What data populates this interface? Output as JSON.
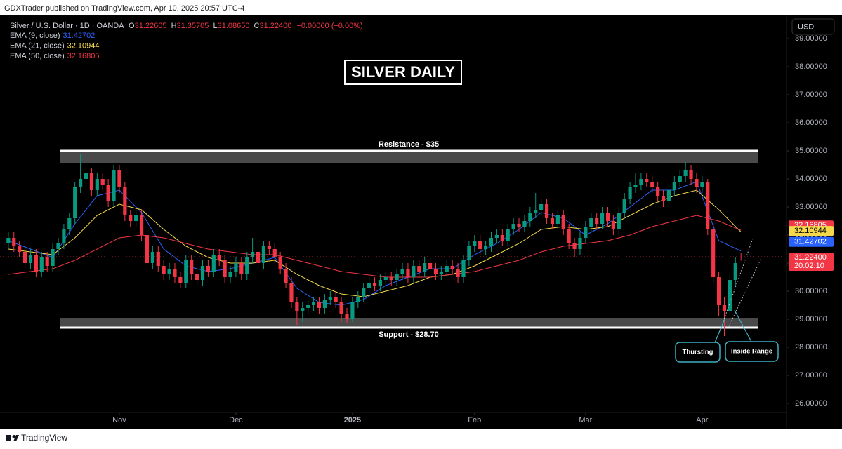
{
  "chart_data": {
    "type": "candlestick",
    "title": "SILVER DAILY",
    "published": "GDXTrader published on TradingView.com, Apr 10, 2025 20:57 UTC-4",
    "symbol": "Silver / U.S. Dollar · 1D · OANDA",
    "ohlc_labels": [
      "O",
      "H",
      "L",
      "C"
    ],
    "ohlc_values": [
      "31.22605",
      "31.35705",
      "31.08650",
      "31.22400"
    ],
    "change": "−0.00060 (−0.00%)",
    "currency": "USD",
    "brand": "TradingView",
    "up_color": "#089981",
    "down_color": "#f23645",
    "open": [
      31.7,
      31.9,
      31.6,
      31.4,
      31.0,
      31.3,
      30.7,
      31.2,
      30.9,
      31.5,
      31.7,
      32.2,
      32.6,
      33.7,
      34.0,
      34.2,
      33.6,
      34.0,
      33.8,
      33.2,
      34.3,
      33.7,
      32.7,
      32.5,
      32.7,
      32.0,
      31.0,
      31.4,
      30.9,
      30.6,
      30.8,
      30.5,
      30.3,
      31.1,
      30.6,
      30.4,
      30.9,
      30.7,
      31.3,
      31.1,
      30.5,
      30.7,
      31.0,
      30.6,
      31.2,
      31.4,
      31.0,
      31.6,
      31.5,
      31.2,
      30.8,
      30.3,
      29.6,
      29.3,
      29.4,
      29.5,
      29.6,
      29.4,
      29.7,
      29.8,
      29.6,
      29.2,
      29.0,
      29.6,
      29.8,
      30.1,
      30.3,
      30.2,
      30.4,
      30.5,
      30.4,
      30.6,
      30.8,
      30.5,
      30.9,
      30.7,
      31.0,
      30.8,
      30.6,
      30.7,
      30.9,
      30.8,
      30.5,
      31.1,
      31.6,
      31.8,
      31.5,
      31.6,
      31.9,
      32.0,
      31.8,
      32.2,
      32.4,
      32.3,
      32.5,
      32.8,
      32.9,
      33.1,
      32.6,
      32.4,
      32.7,
      32.2,
      31.7,
      31.5,
      31.9,
      32.3,
      32.6,
      32.4,
      32.8,
      32.5,
      32.2,
      32.8,
      33.3,
      33.7,
      33.8,
      34.0,
      33.9,
      33.7,
      33.4,
      33.2,
      33.6,
      33.9,
      34.1,
      34.3,
      34.0,
      33.7,
      33.9,
      32.2,
      30.5,
      29.5,
      29.3,
      30.4,
      31.22605
    ],
    "high": [
      32.1,
      32.1,
      31.8,
      31.6,
      31.5,
      31.5,
      31.4,
      31.4,
      31.7,
      31.9,
      32.4,
      32.8,
      33.9,
      34.9,
      34.8,
      34.4,
      34.2,
      34.2,
      34.0,
      34.5,
      34.5,
      33.9,
      32.9,
      32.9,
      32.9,
      32.2,
      31.6,
      31.6,
      31.1,
      31.0,
      31.0,
      30.7,
      31.3,
      31.3,
      30.8,
      31.1,
      31.1,
      31.5,
      31.5,
      31.3,
      30.9,
      31.2,
      31.2,
      31.4,
      31.9,
      31.6,
      31.8,
      31.8,
      31.7,
      31.4,
      31.0,
      30.5,
      29.8,
      29.6,
      29.7,
      29.8,
      29.8,
      29.9,
      30.0,
      30.0,
      29.8,
      29.4,
      29.8,
      30.0,
      30.3,
      30.5,
      30.5,
      30.6,
      30.7,
      30.7,
      30.8,
      31.0,
      31.0,
      31.1,
      31.1,
      31.2,
      31.2,
      31.0,
      30.9,
      31.1,
      31.1,
      31.0,
      31.3,
      31.8,
      32.0,
      32.0,
      31.8,
      32.1,
      32.2,
      32.2,
      32.4,
      32.6,
      32.6,
      32.7,
      33.0,
      33.5,
      33.3,
      33.3,
      32.8,
      32.9,
      32.9,
      32.4,
      31.9,
      32.1,
      32.5,
      32.8,
      32.8,
      33.0,
      33.0,
      32.7,
      33.0,
      33.5,
      33.9,
      34.2,
      34.2,
      34.2,
      34.1,
      33.9,
      33.6,
      33.8,
      34.1,
      34.3,
      34.6,
      34.5,
      34.2,
      34.1,
      34.0,
      32.4,
      30.7,
      29.8,
      30.6,
      31.2,
      31.35705
    ],
    "low": [
      31.5,
      31.4,
      31.2,
      30.8,
      30.8,
      30.5,
      30.5,
      30.7,
      30.7,
      31.3,
      31.5,
      32.0,
      32.4,
      33.5,
      33.8,
      33.4,
      33.4,
      33.6,
      33.0,
      33.0,
      33.5,
      32.5,
      32.3,
      32.3,
      31.8,
      30.8,
      30.8,
      30.7,
      30.4,
      30.4,
      30.3,
      30.1,
      30.1,
      30.4,
      30.2,
      30.2,
      30.5,
      30.5,
      30.9,
      30.3,
      30.3,
      30.5,
      30.4,
      30.4,
      31.0,
      30.8,
      30.8,
      31.3,
      31.0,
      30.6,
      30.1,
      29.4,
      28.8,
      28.9,
      29.2,
      29.3,
      29.2,
      29.2,
      29.5,
      29.4,
      28.9,
      28.85,
      28.9,
      29.4,
      29.6,
      29.9,
      30.0,
      30.0,
      30.2,
      30.2,
      30.2,
      30.4,
      30.3,
      30.3,
      30.5,
      30.5,
      30.6,
      30.4,
      30.4,
      30.5,
      30.6,
      30.3,
      30.3,
      30.9,
      31.4,
      31.3,
      31.3,
      31.4,
      31.7,
      31.6,
      31.6,
      32.0,
      32.1,
      32.1,
      32.3,
      32.6,
      32.7,
      32.4,
      32.2,
      32.2,
      32.0,
      31.5,
      31.2,
      31.3,
      31.7,
      32.1,
      32.2,
      32.2,
      32.3,
      32.0,
      32.0,
      32.6,
      33.1,
      33.5,
      33.6,
      33.7,
      33.5,
      33.2,
      33.0,
      33.0,
      33.4,
      33.7,
      33.9,
      33.8,
      33.5,
      33.5,
      32.0,
      30.3,
      29.1,
      28.4,
      29.1,
      30.2,
      31.0865
    ],
    "close": [
      31.9,
      31.6,
      31.4,
      31.0,
      31.3,
      30.7,
      31.2,
      30.9,
      31.5,
      31.7,
      32.2,
      32.6,
      33.7,
      34.0,
      34.2,
      33.6,
      34.0,
      33.8,
      33.2,
      34.3,
      33.7,
      32.7,
      32.5,
      32.7,
      32.0,
      31.0,
      31.4,
      30.9,
      30.6,
      30.8,
      30.5,
      30.3,
      31.1,
      30.6,
      30.4,
      30.9,
      30.7,
      31.3,
      31.1,
      30.5,
      30.7,
      31.0,
      30.6,
      31.2,
      31.4,
      31.0,
      31.6,
      31.5,
      31.2,
      30.8,
      30.3,
      29.6,
      29.3,
      29.4,
      29.5,
      29.6,
      29.4,
      29.7,
      29.8,
      29.6,
      29.2,
      29.0,
      29.6,
      29.8,
      30.1,
      30.3,
      30.2,
      30.4,
      30.5,
      30.4,
      30.6,
      30.8,
      30.5,
      30.9,
      30.7,
      31.0,
      30.8,
      30.6,
      30.7,
      30.9,
      30.8,
      30.5,
      31.1,
      31.6,
      31.8,
      31.5,
      31.6,
      31.9,
      32.0,
      31.8,
      32.2,
      32.4,
      32.3,
      32.5,
      32.8,
      32.9,
      33.1,
      32.6,
      32.4,
      32.7,
      32.2,
      31.7,
      31.5,
      31.9,
      32.3,
      32.6,
      32.4,
      32.8,
      32.5,
      32.2,
      32.8,
      33.3,
      33.7,
      33.8,
      34.0,
      33.9,
      33.7,
      33.4,
      33.2,
      33.6,
      33.9,
      34.1,
      34.3,
      34.0,
      33.7,
      33.9,
      32.2,
      30.5,
      29.5,
      29.3,
      30.4,
      31.0,
      31.224
    ],
    "series": [
      {
        "name": "EMA (9, close)",
        "color": "#2962ff",
        "last_label": "31.42702",
        "x": [
          0,
          4,
          8,
          12,
          16,
          20,
          24,
          28,
          32,
          36,
          40,
          44,
          48,
          52,
          56,
          60,
          64,
          68,
          72,
          76,
          80,
          84,
          88,
          92,
          96,
          100,
          104,
          108,
          112,
          116,
          120,
          124,
          128,
          132
        ],
        "values": [
          31.8,
          31.5,
          31.2,
          32.4,
          33.4,
          33.6,
          32.8,
          31.5,
          30.9,
          30.7,
          30.8,
          31.0,
          31.2,
          30.1,
          29.6,
          29.5,
          29.7,
          30.2,
          30.5,
          30.8,
          30.8,
          31.3,
          31.7,
          32.2,
          32.8,
          32.6,
          32.0,
          32.4,
          33.0,
          33.6,
          33.6,
          33.9,
          31.8,
          31.43
        ]
      },
      {
        "name": "EMA (21, close)",
        "color": "#f5d94a",
        "last_label": "32.10944",
        "x": [
          0,
          4,
          8,
          12,
          16,
          20,
          24,
          28,
          32,
          36,
          40,
          44,
          48,
          52,
          56,
          60,
          64,
          68,
          72,
          76,
          80,
          84,
          88,
          92,
          96,
          100,
          104,
          108,
          112,
          116,
          120,
          124,
          128,
          132
        ],
        "values": [
          31.5,
          31.4,
          31.3,
          31.9,
          32.7,
          33.1,
          32.9,
          32.2,
          31.6,
          31.2,
          31.0,
          31.0,
          31.1,
          30.6,
          30.2,
          29.9,
          29.8,
          30.0,
          30.2,
          30.5,
          30.6,
          30.9,
          31.3,
          31.7,
          32.2,
          32.3,
          32.2,
          32.3,
          32.7,
          33.1,
          33.4,
          33.6,
          32.9,
          32.11
        ]
      },
      {
        "name": "EMA (50, close)",
        "color": "#f23645",
        "last_label": "32.16805",
        "x": [
          0,
          4,
          8,
          12,
          16,
          20,
          24,
          28,
          32,
          36,
          40,
          44,
          48,
          52,
          56,
          60,
          64,
          68,
          72,
          76,
          80,
          84,
          88,
          92,
          96,
          100,
          104,
          108,
          112,
          116,
          120,
          124,
          128,
          132
        ],
        "values": [
          30.6,
          30.7,
          30.8,
          31.1,
          31.5,
          31.9,
          32.0,
          31.9,
          31.7,
          31.5,
          31.4,
          31.3,
          31.3,
          31.1,
          30.9,
          30.7,
          30.6,
          30.5,
          30.5,
          30.5,
          30.6,
          30.7,
          30.9,
          31.1,
          31.4,
          31.6,
          31.7,
          31.8,
          32.0,
          32.3,
          32.5,
          32.7,
          32.5,
          32.17
        ]
      }
    ],
    "last_price_label": "31.22400",
    "countdown": "20:02:10",
    "annotations": [
      {
        "label": "Resistance - $35",
        "value": 35,
        "band": [
          34.55,
          35
        ]
      },
      {
        "label": "Support - $28.70",
        "value": 28.7,
        "band": [
          28.7,
          29.05
        ]
      }
    ],
    "callouts": [
      "Thursting",
      "Inside Range"
    ],
    "xlim": [
      -1.5,
      140.2
    ],
    "xticks": [
      {
        "value": 20,
        "label": "Nov"
      },
      {
        "value": 41,
        "label": "Dec"
      },
      {
        "value": 62,
        "label": "2025"
      },
      {
        "value": 84,
        "label": "Feb"
      },
      {
        "value": 104,
        "label": "Mar"
      },
      {
        "value": 125,
        "label": "Apr"
      }
    ],
    "ylim": [
      25.6,
      39.8
    ],
    "yticks": [
      {
        "value": 26,
        "label": "26.00000"
      },
      {
        "value": 27,
        "label": "27.00000"
      },
      {
        "value": 28,
        "label": "28.00000"
      },
      {
        "value": 29,
        "label": "29.00000"
      },
      {
        "value": 30,
        "label": "30.00000"
      },
      {
        "value": 31,
        "label": "31.00000"
      },
      {
        "value": 32,
        "label": "32.00000"
      },
      {
        "value": 33,
        "label": "33.00000"
      },
      {
        "value": 34,
        "label": "34.00000"
      },
      {
        "value": 35,
        "label": "35.00000"
      },
      {
        "value": 36,
        "label": "36.00000"
      },
      {
        "value": 37,
        "label": "37.00000"
      },
      {
        "value": 38,
        "label": "38.00000"
      },
      {
        "value": 39,
        "label": "39.00000"
      }
    ]
  }
}
